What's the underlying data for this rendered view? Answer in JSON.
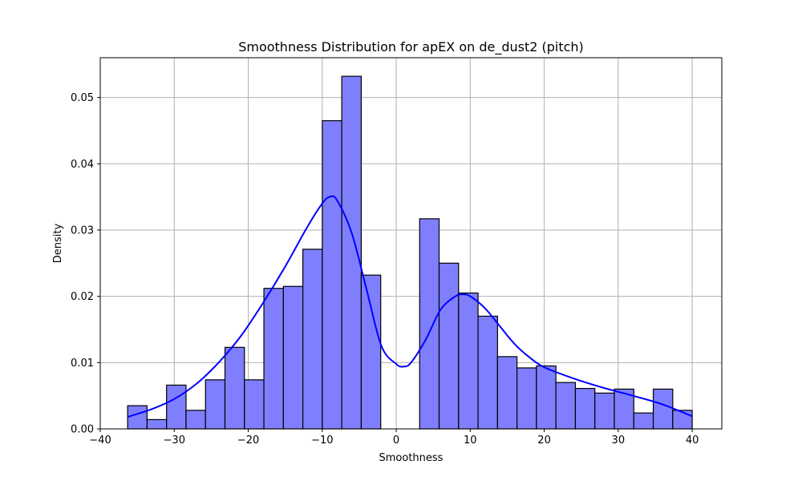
{
  "chart_data": {
    "type": "bar",
    "title": "Smoothness Distribution for apEX on de_dust2 (pitch)",
    "xlabel": "Smoothness",
    "ylabel": "Density",
    "xlim": [
      -40,
      44
    ],
    "ylim": [
      0,
      0.056
    ],
    "grid": true,
    "xticks": [
      -40,
      -30,
      -20,
      -10,
      0,
      10,
      20,
      30,
      40
    ],
    "xtick_labels": [
      "−40",
      "−30",
      "−20",
      "−10",
      "0",
      "10",
      "20",
      "30",
      "40"
    ],
    "yticks": [
      0.0,
      0.01,
      0.02,
      0.03,
      0.04,
      0.05
    ],
    "ytick_labels": [
      "0.00",
      "0.01",
      "0.02",
      "0.03",
      "0.04",
      "0.05"
    ],
    "bins": {
      "start": -36.3,
      "end": 40.0,
      "values": [
        0.0035,
        0.0014,
        0.0066,
        0.0028,
        0.0074,
        0.0123,
        0.0074,
        0.0212,
        0.0215,
        0.0271,
        0.0465,
        0.0532,
        0.0232,
        0,
        0,
        0.0317,
        0.025,
        0.0205,
        0.017,
        0.0109,
        0.0092,
        0.0095,
        0.007,
        0.0061,
        0.0054,
        0.006,
        0.0024,
        0.006,
        0.0028
      ]
    },
    "kde": {
      "x": [
        -36.3,
        -33,
        -30,
        -27,
        -24,
        -21,
        -18,
        -15,
        -12,
        -10,
        -9,
        -8,
        -6,
        -4,
        -2,
        0,
        1,
        2,
        4,
        6,
        8,
        9,
        10,
        12,
        14,
        16,
        18,
        20,
        24,
        28,
        32,
        36,
        40
      ],
      "y": [
        0.0018,
        0.003,
        0.0045,
        0.0068,
        0.01,
        0.014,
        0.019,
        0.0245,
        0.0305,
        0.034,
        0.035,
        0.0345,
        0.0295,
        0.021,
        0.0125,
        0.0098,
        0.0094,
        0.01,
        0.0135,
        0.018,
        0.02,
        0.0203,
        0.02,
        0.0182,
        0.0155,
        0.0128,
        0.0108,
        0.0093,
        0.0076,
        0.0062,
        0.005,
        0.0037,
        0.0019
      ]
    },
    "colors": {
      "bar_fill": "#7f7ffe",
      "bar_edge": "#000000",
      "kde_line": "#0000ff",
      "grid": "#b0b0b0"
    }
  }
}
